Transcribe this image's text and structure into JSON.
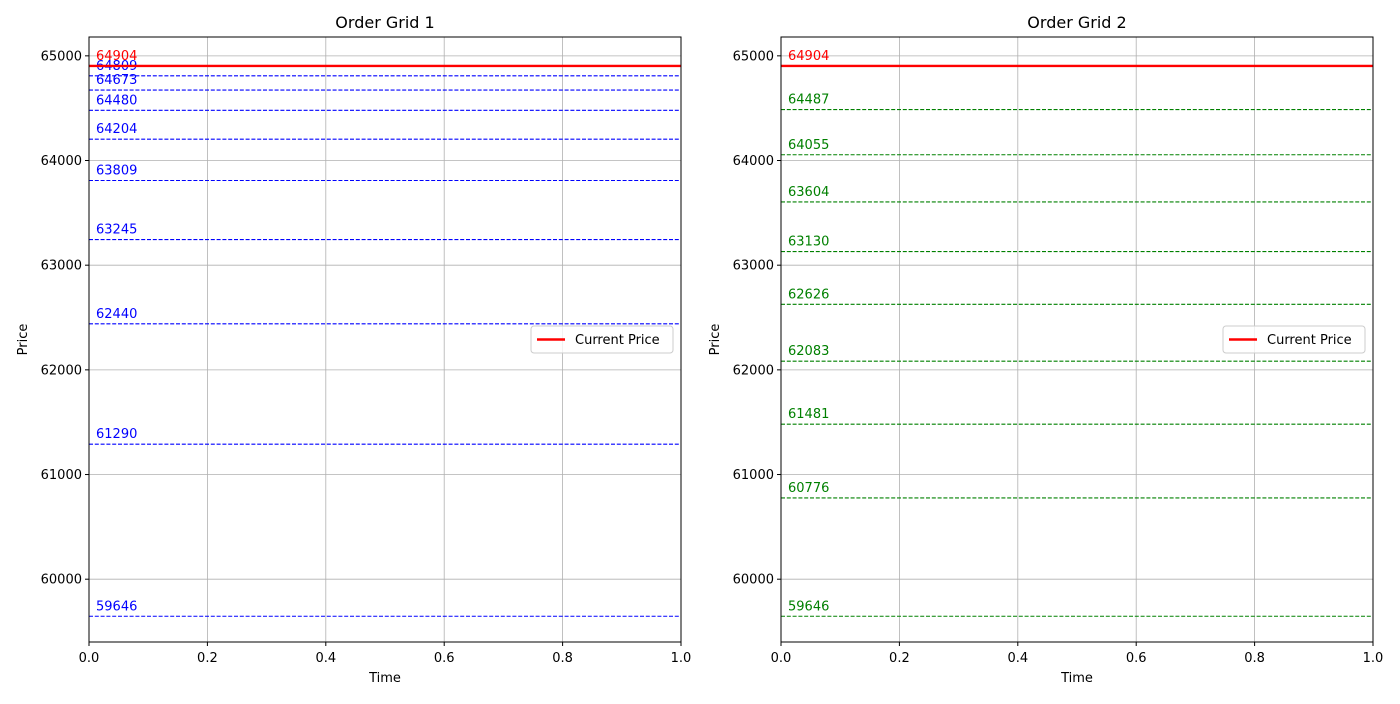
{
  "chart_data": [
    {
      "type": "line",
      "title": "Order Grid 1",
      "xlabel": "Time",
      "ylabel": "Price",
      "xlim": [
        0,
        1
      ],
      "ylim": [
        59400,
        65180
      ],
      "xticks": [
        0.0,
        0.2,
        0.4,
        0.6,
        0.8,
        1.0
      ],
      "xtick_labels": [
        "0.0",
        "0.2",
        "0.4",
        "0.6",
        "0.8",
        "1.0"
      ],
      "yticks": [
        60000,
        61000,
        62000,
        63000,
        64000,
        65000
      ],
      "ytick_labels": [
        "60000",
        "61000",
        "62000",
        "63000",
        "64000",
        "65000"
      ],
      "grid": true,
      "legend": {
        "position": "center-right",
        "entries": [
          "Current Price"
        ]
      },
      "current_price": {
        "name": "Current Price",
        "value": 64904,
        "label": "64904",
        "color": "#ff0000"
      },
      "order_levels": {
        "color": "#0000ff",
        "values": [
          64809,
          64673,
          64480,
          64204,
          63809,
          63245,
          62440,
          61290,
          59646
        ],
        "labels": [
          "64809",
          "64673",
          "64480",
          "64204",
          "63809",
          "63245",
          "62440",
          "61290",
          "59646"
        ]
      }
    },
    {
      "type": "line",
      "title": "Order Grid 2",
      "xlabel": "Time",
      "ylabel": "Price",
      "xlim": [
        0,
        1
      ],
      "ylim": [
        59400,
        65180
      ],
      "xticks": [
        0.0,
        0.2,
        0.4,
        0.6,
        0.8,
        1.0
      ],
      "xtick_labels": [
        "0.0",
        "0.2",
        "0.4",
        "0.6",
        "0.8",
        "1.0"
      ],
      "yticks": [
        60000,
        61000,
        62000,
        63000,
        64000,
        65000
      ],
      "ytick_labels": [
        "60000",
        "61000",
        "62000",
        "63000",
        "64000",
        "65000"
      ],
      "grid": true,
      "legend": {
        "position": "center-right",
        "entries": [
          "Current Price"
        ]
      },
      "current_price": {
        "name": "Current Price",
        "value": 64904,
        "label": "64904",
        "color": "#ff0000"
      },
      "order_levels": {
        "color": "#008000",
        "values": [
          64487,
          64055,
          63604,
          63130,
          62626,
          62083,
          61481,
          60776,
          59646
        ],
        "labels": [
          "64487",
          "64055",
          "63604",
          "63130",
          "62626",
          "62083",
          "61481",
          "60776",
          "59646"
        ]
      }
    }
  ]
}
